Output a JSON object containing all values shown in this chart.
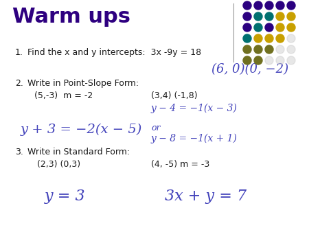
{
  "title": "Warm ups",
  "title_color": "#2E0080",
  "title_fontsize": 22,
  "bg_color": "#ffffff",
  "text_color": "#1a1a1a",
  "blue_color": "#4444BB",
  "line1_num": "1.",
  "line1_text": "Find the x and y intercepts:  3x -9y = 18",
  "line1_answer": "(6, 0)(0, −2)",
  "line2_num": "2.",
  "line2_text": "Write in Point-Slope Form:",
  "line2_left": "(5,-3)  m = -2",
  "line2_right": "(3,4) (-1,8)",
  "line2_right_eq1": "y − 4 = −1(x − 3)",
  "line2_left_eq": "y + 3 = −2(x − 5)",
  "line2_or": "or",
  "line2_right_eq2": "y − 8 = −1(x + 1)",
  "line3_num": "3.",
  "line3_text": "Write in Standard Form:",
  "line3_left": " (2,3) (0,3)",
  "line3_right": "(4, -5) m = -3",
  "line3_left_eq": "y = 3",
  "line3_right_eq": "3x + y = 7",
  "dot_rows": [
    [
      "#2E0080",
      "#2E0080",
      "#2E0080",
      "#2E0080",
      "#2E0080"
    ],
    [
      "#2E0080",
      "#008B8B",
      "#008B8B",
      "#DAA520",
      "#DAA520"
    ],
    [
      "#2E0080",
      "#008B8B",
      "#008B8B",
      "#DAA520",
      "#DAA520"
    ],
    [
      "#008B8B",
      "#DAA520",
      "#DAA520",
      "#DAA520",
      "#ffffff"
    ],
    [
      "#808040",
      "#808040",
      "#808040",
      "#ffffff",
      "#ffffff"
    ],
    [
      "#808040",
      "#808040",
      "#ffffff",
      "#ffffff",
      "#ffffff"
    ]
  ]
}
